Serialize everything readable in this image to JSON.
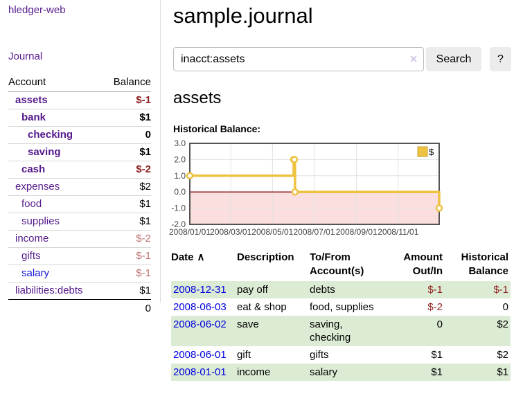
{
  "brand": "hledger-web",
  "sidebar": {
    "journal_link": "Journal",
    "accounts": {
      "header_account": "Account",
      "header_balance": "Balance",
      "rows": [
        {
          "name": "assets",
          "balance": "$-1"
        },
        {
          "name": "bank",
          "balance": "$1"
        },
        {
          "name": "checking",
          "balance": "0"
        },
        {
          "name": "saving",
          "balance": "$1"
        },
        {
          "name": "cash",
          "balance": "$-2"
        },
        {
          "name": "expenses",
          "balance": "$2"
        },
        {
          "name": "food",
          "balance": "$1"
        },
        {
          "name": "supplies",
          "balance": "$1"
        },
        {
          "name": "income",
          "balance": "$-2"
        },
        {
          "name": "gifts",
          "balance": "$-1"
        },
        {
          "name": "salary",
          "balance": "$-1"
        },
        {
          "name": "liabilities:debts",
          "balance": "$1"
        }
      ],
      "total": "0"
    }
  },
  "main": {
    "title": "sample.journal",
    "search": {
      "value": "inacct:assets",
      "clear_icon": "✕",
      "search_button": "Search",
      "help_button": "?"
    },
    "account_title": "assets",
    "chart_title": "Historical Balance:"
  },
  "chart_data": {
    "type": "line",
    "title": "Historical Balance",
    "series": [
      {
        "name": "$",
        "color": "#edc240",
        "step": true,
        "points": [
          [
            "2008-01-01",
            1
          ],
          [
            "2008-06-01",
            2
          ],
          [
            "2008-06-02",
            2
          ],
          [
            "2008-06-03",
            0
          ],
          [
            "2008-12-31",
            -1
          ]
        ]
      }
    ],
    "x_range": [
      "2008-01-01",
      "2008-12-31"
    ],
    "x_ticks": [
      "2008/01/01",
      "2008/03/01",
      "2008/05/01",
      "2008/07/01",
      "2008/09/01",
      "2008/11/01"
    ],
    "y_ticks": [
      "3.0",
      "2.0",
      "1.0",
      "0.0",
      "-1.0",
      "-2.0"
    ],
    "ylim": [
      -2,
      3
    ],
    "grid": true,
    "zero_line_color": "#8b1a1a",
    "negative_region_color": "#fbdede",
    "legend": {
      "label": "$",
      "position": "top-right"
    }
  },
  "register": {
    "headers": {
      "date": "Date",
      "sort_icon": "∧",
      "description": "Description",
      "accounts": "To/From Account(s)",
      "amount": "Amount Out/In",
      "balance": "Historical Balance"
    },
    "rows": [
      {
        "date": "2008-12-31",
        "description": "pay off",
        "accounts": "debts",
        "amount": "$-1",
        "balance": "$-1"
      },
      {
        "date": "2008-06-03",
        "description": "eat & shop",
        "accounts": "food, supplies",
        "amount": "$-2",
        "balance": "0"
      },
      {
        "date": "2008-06-02",
        "description": "save",
        "accounts": "saving, checking",
        "amount": "0",
        "balance": "$2"
      },
      {
        "date": "2008-06-01",
        "description": "gift",
        "accounts": "gifts",
        "amount": "$1",
        "balance": "$2"
      },
      {
        "date": "2008-01-01",
        "description": "income",
        "accounts": "salary",
        "amount": "$1",
        "balance": "$1"
      }
    ]
  },
  "colors": {
    "link_purple": "#551A8B",
    "link_blue": "#0000e0",
    "negative_strong": "#8f1f1f",
    "negative_soft": "#bb7070",
    "row_stripe_green": "#dcecd4",
    "chart_line_gold": "#edc240",
    "chart_zero_line": "#8b1a1a",
    "chart_negative_fill": "#fbdede",
    "button_gray": "#ececec"
  }
}
